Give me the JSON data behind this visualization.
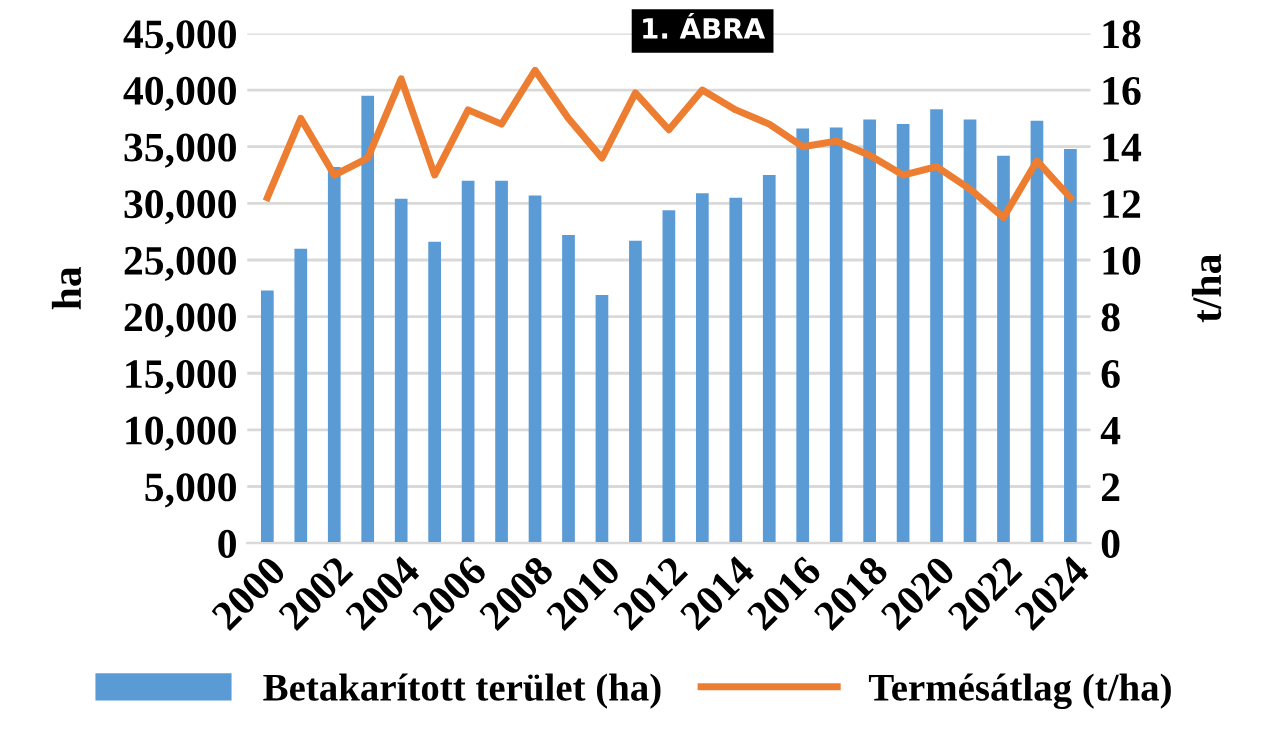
{
  "chart_data": {
    "type": "bar",
    "title": "1. ÁBRA",
    "ylabel": "ha",
    "y2label": "t/ha",
    "categories": [
      "2000",
      null,
      "2002",
      null,
      "2004",
      null,
      "2006",
      null,
      "2008",
      null,
      "2010",
      null,
      "2012",
      null,
      "2014",
      null,
      "2016",
      null,
      "2018",
      null,
      "2020",
      null,
      "2022",
      null,
      "2024"
    ],
    "series": [
      {
        "name": "Betakarított terület (ha)",
        "color": "#5b9bd5",
        "values": [
          22300,
          26000,
          33200,
          39500,
          30400,
          26600,
          32000,
          32000,
          30700,
          27200,
          21900,
          26700,
          29400,
          30900,
          30500,
          32500,
          36600,
          36700,
          37400,
          37000,
          38300,
          37400,
          34200,
          37300,
          34800
        ]
      },
      {
        "name": "Termésátlag (t/ha)",
        "type": "line",
        "axis": "y2",
        "color": "#ed7d31",
        "values": [
          12.2,
          15.0,
          13.0,
          13.6,
          16.4,
          13.0,
          15.3,
          14.8,
          16.7,
          15.0,
          13.6,
          15.9,
          14.6,
          16.0,
          15.3,
          14.8,
          14.0,
          14.2,
          13.7,
          13.0,
          13.3,
          12.5,
          11.5,
          13.5,
          12.2
        ]
      }
    ],
    "ylim": [
      0,
      45000
    ],
    "yticks": [
      {
        "value": 0,
        "label": "0"
      },
      {
        "value": 5000,
        "label": "5,000"
      },
      {
        "value": 10000,
        "label": "10,000"
      },
      {
        "value": 15000,
        "label": "15,000"
      },
      {
        "value": 20000,
        "label": "20,000"
      },
      {
        "value": 25000,
        "label": "25,000"
      },
      {
        "value": 30000,
        "label": "30,000"
      },
      {
        "value": 35000,
        "label": "35,000"
      },
      {
        "value": 40000,
        "label": "40,000"
      },
      {
        "value": 45000,
        "label": "45,000"
      }
    ],
    "y2lim": [
      0,
      18
    ],
    "y2ticks": [
      0,
      2,
      4,
      6,
      8,
      10,
      12,
      14,
      16,
      18
    ],
    "grid": "y",
    "legend": "bottom",
    "marker": "none",
    "line_style": "solid"
  }
}
